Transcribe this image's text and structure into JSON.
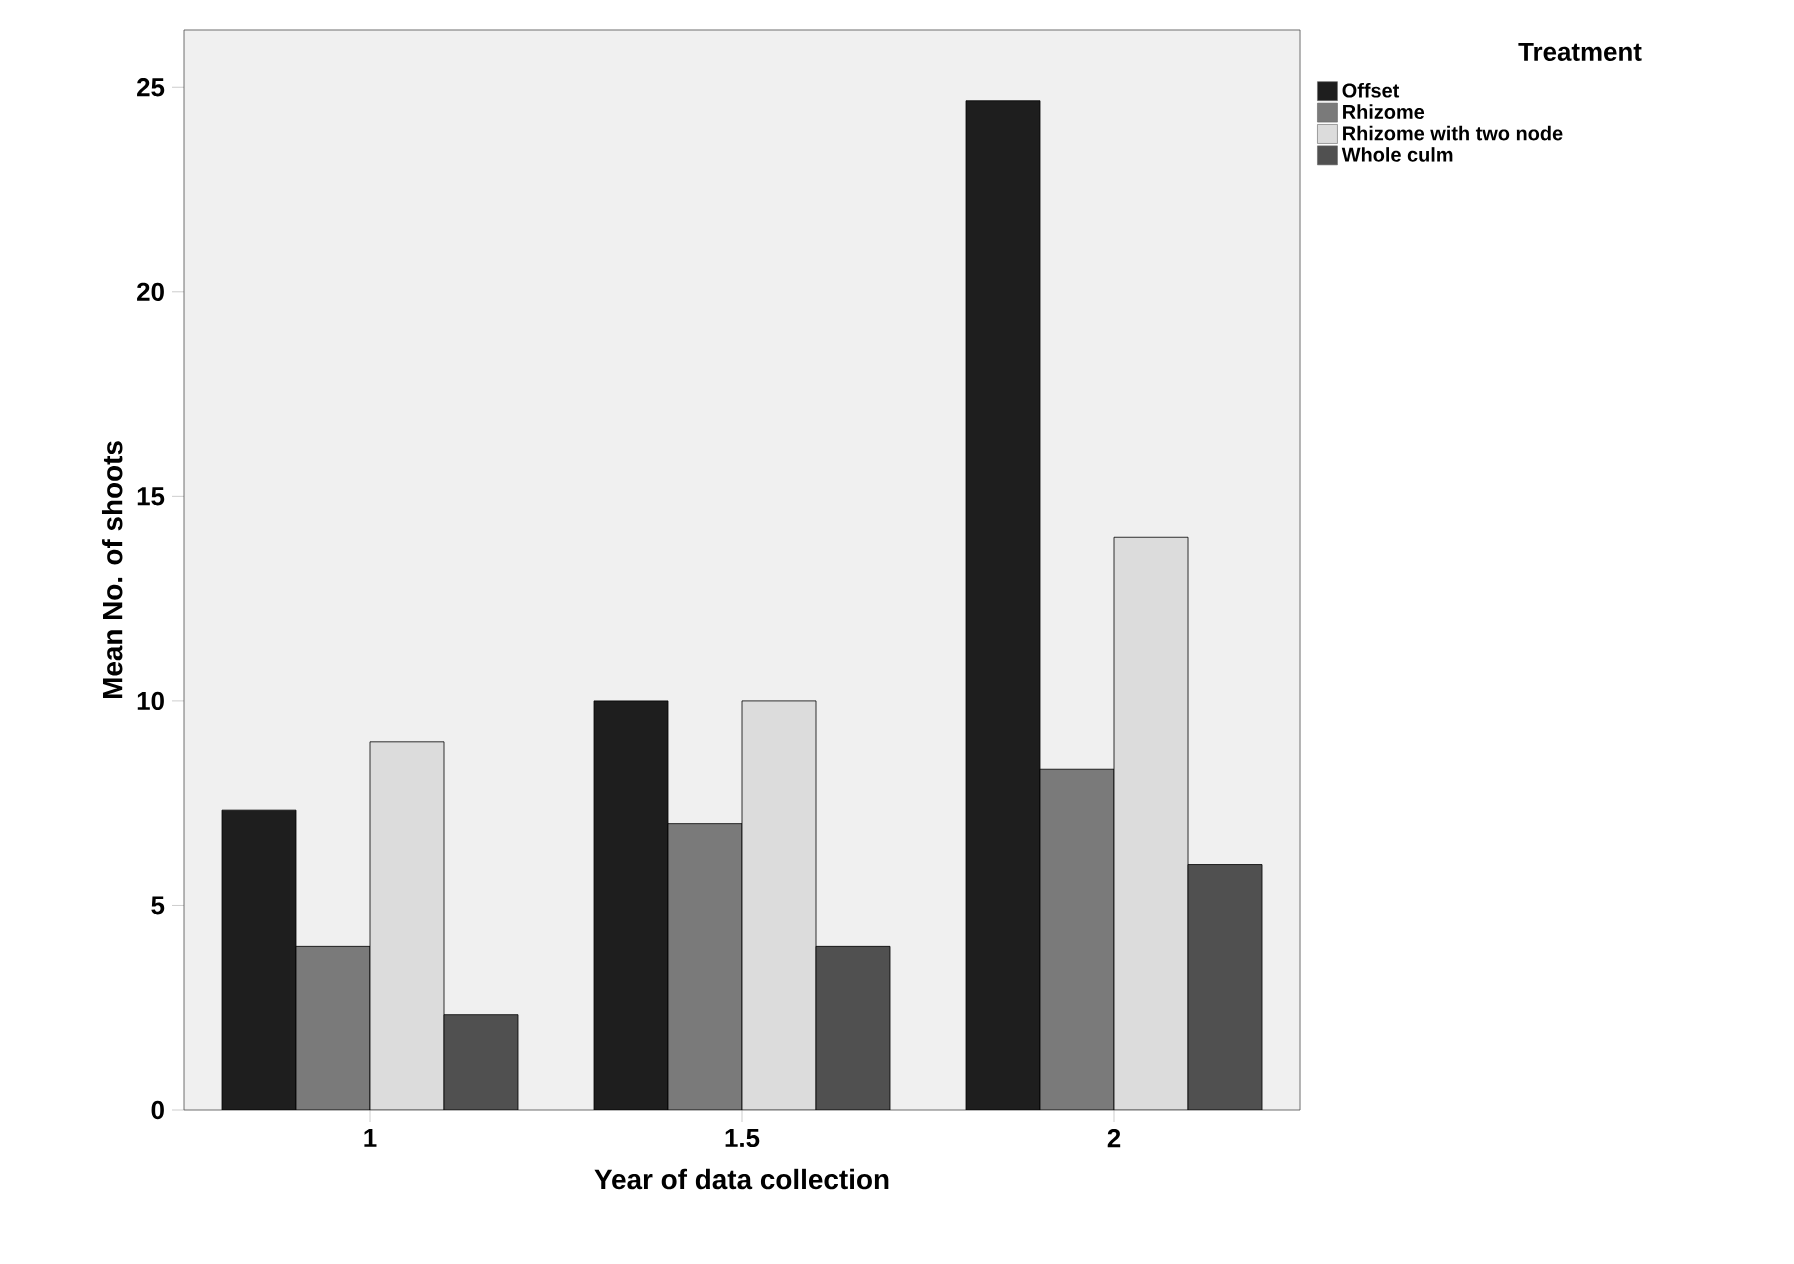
{
  "chart_data": {
    "type": "bar",
    "xlabel": "Year of data collection",
    "ylabel": "Mean No. of shoots",
    "legend_title": "Treatment",
    "categories": [
      "1",
      "1.5",
      "2"
    ],
    "series": [
      {
        "name": "Offset",
        "color": "#1e1e1e",
        "values": [
          7.33,
          10,
          24.67
        ]
      },
      {
        "name": "Rhizome",
        "color": "#7a7a7a",
        "values": [
          4,
          7,
          8.33
        ]
      },
      {
        "name": "Rhizome with two node",
        "color": "#dcdcdc",
        "values": [
          9,
          10,
          14
        ]
      },
      {
        "name": "Whole culm",
        "color": "#505050",
        "values": [
          2.33,
          4,
          6
        ]
      }
    ],
    "ylim": [
      0,
      26.4
    ],
    "yticks": [
      0,
      5,
      10,
      15,
      20,
      25
    ],
    "grid": false,
    "legend": "top right"
  }
}
